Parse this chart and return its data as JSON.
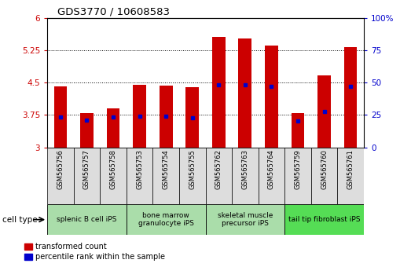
{
  "title": "GDS3770 / 10608583",
  "samples": [
    "GSM565756",
    "GSM565757",
    "GSM565758",
    "GSM565753",
    "GSM565754",
    "GSM565755",
    "GSM565762",
    "GSM565763",
    "GSM565764",
    "GSM565759",
    "GSM565760",
    "GSM565761"
  ],
  "bar_heights": [
    4.42,
    3.8,
    3.9,
    4.46,
    4.44,
    4.4,
    5.57,
    5.53,
    5.36,
    3.8,
    4.67,
    5.33
  ],
  "percentile_values": [
    3.7,
    3.63,
    3.71,
    3.73,
    3.72,
    3.69,
    4.46,
    4.46,
    4.42,
    3.61,
    3.83,
    4.42
  ],
  "ylim": [
    3.0,
    6.0
  ],
  "yticks_left": [
    3.0,
    3.75,
    4.5,
    5.25,
    6.0
  ],
  "yticks_right": [
    0,
    25,
    50,
    75,
    100
  ],
  "bar_color": "#cc0000",
  "percentile_color": "#0000cc",
  "group_boundaries": [
    {
      "start": 0,
      "end": 2,
      "label": "splenic B cell iPS",
      "color": "#aaddaa"
    },
    {
      "start": 3,
      "end": 5,
      "label": "bone marrow\ngranulocyte iPS",
      "color": "#aaddaa"
    },
    {
      "start": 6,
      "end": 8,
      "label": "skeletal muscle\nprecursor iPS",
      "color": "#aaddaa"
    },
    {
      "start": 9,
      "end": 11,
      "label": "tail tip fibroblast iPS",
      "color": "#55dd55"
    }
  ],
  "bar_width": 0.5,
  "base_value": 3.0,
  "xlim_left": -0.5,
  "xlim_right": 11.5
}
